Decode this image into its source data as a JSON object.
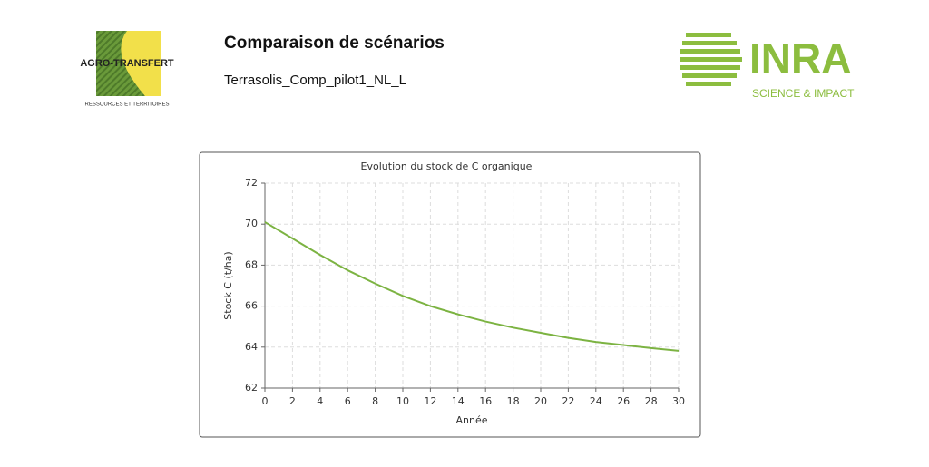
{
  "header": {
    "title": "Comparaison de scénarios",
    "subtitle": "Terrasolis_Comp_pilot1_NL_L",
    "left_logo": {
      "name": "AGRO-TRANSFERT",
      "tagline": "RESSOURCES ET TERRITOIRES"
    },
    "right_logo": {
      "name": "INRA",
      "tagline": "SCIENCE & IMPACT"
    }
  },
  "chart_data": {
    "type": "line",
    "title": "Evolution du stock de C organique",
    "x_label": "Année",
    "y_label": "Stock C (t/ha)",
    "x": [
      0,
      2,
      4,
      6,
      8,
      10,
      12,
      14,
      16,
      18,
      20,
      22,
      24,
      26,
      28,
      30
    ],
    "series": [
      {
        "color": "#7cb342",
        "values": [
          70.1,
          69.3,
          68.5,
          67.75,
          67.1,
          66.5,
          66.0,
          65.6,
          65.25,
          64.95,
          64.7,
          64.45,
          64.25,
          64.1,
          63.95,
          63.82
        ]
      }
    ],
    "xlim": [
      0,
      30
    ],
    "xticks": [
      0,
      2,
      4,
      6,
      8,
      10,
      12,
      14,
      16,
      18,
      20,
      22,
      24,
      26,
      28,
      30
    ],
    "ylim": [
      62,
      72
    ],
    "yticks": [
      62,
      64,
      66,
      68,
      70,
      72
    ],
    "grid": true
  }
}
